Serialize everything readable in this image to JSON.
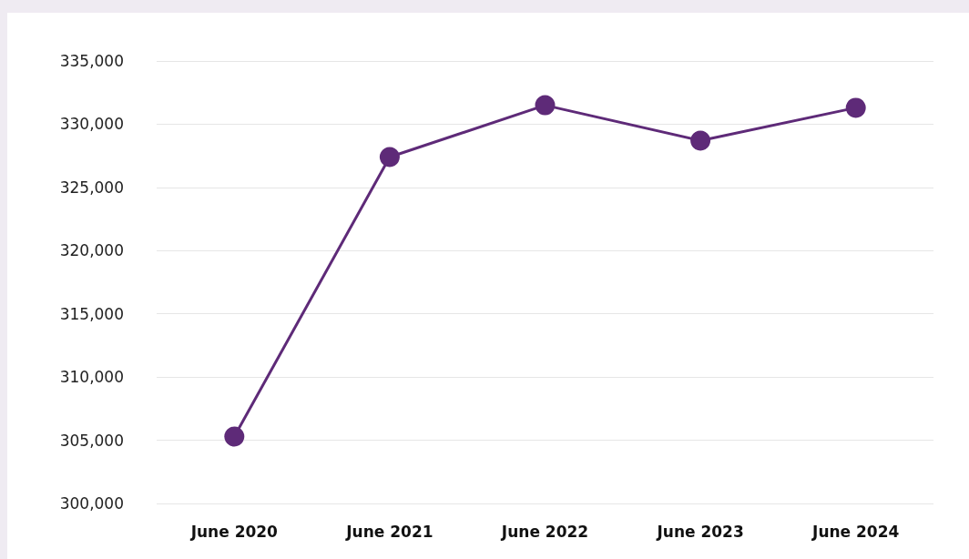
{
  "chart_data": {
    "type": "line",
    "categories": [
      "June 2020",
      "June 2021",
      "June 2022",
      "June 2023",
      "June 2024"
    ],
    "series": [
      {
        "color": "#5e2a78",
        "values": [
          305300,
          327400,
          331500,
          328700,
          331300
        ]
      }
    ],
    "ylim": [
      300000,
      335000
    ],
    "yticks": [
      {
        "value": 300000,
        "label": "300,000"
      },
      {
        "value": 305000,
        "label": "305,000"
      },
      {
        "value": 310000,
        "label": "310,000"
      },
      {
        "value": 315000,
        "label": "315,000"
      },
      {
        "value": 320000,
        "label": "320,000"
      },
      {
        "value": 325000,
        "label": "325,000"
      },
      {
        "value": 330000,
        "label": "330,000"
      },
      {
        "value": 335000,
        "label": "335,000"
      }
    ],
    "grid": "y",
    "marker": "circle",
    "line_style": "solid"
  }
}
